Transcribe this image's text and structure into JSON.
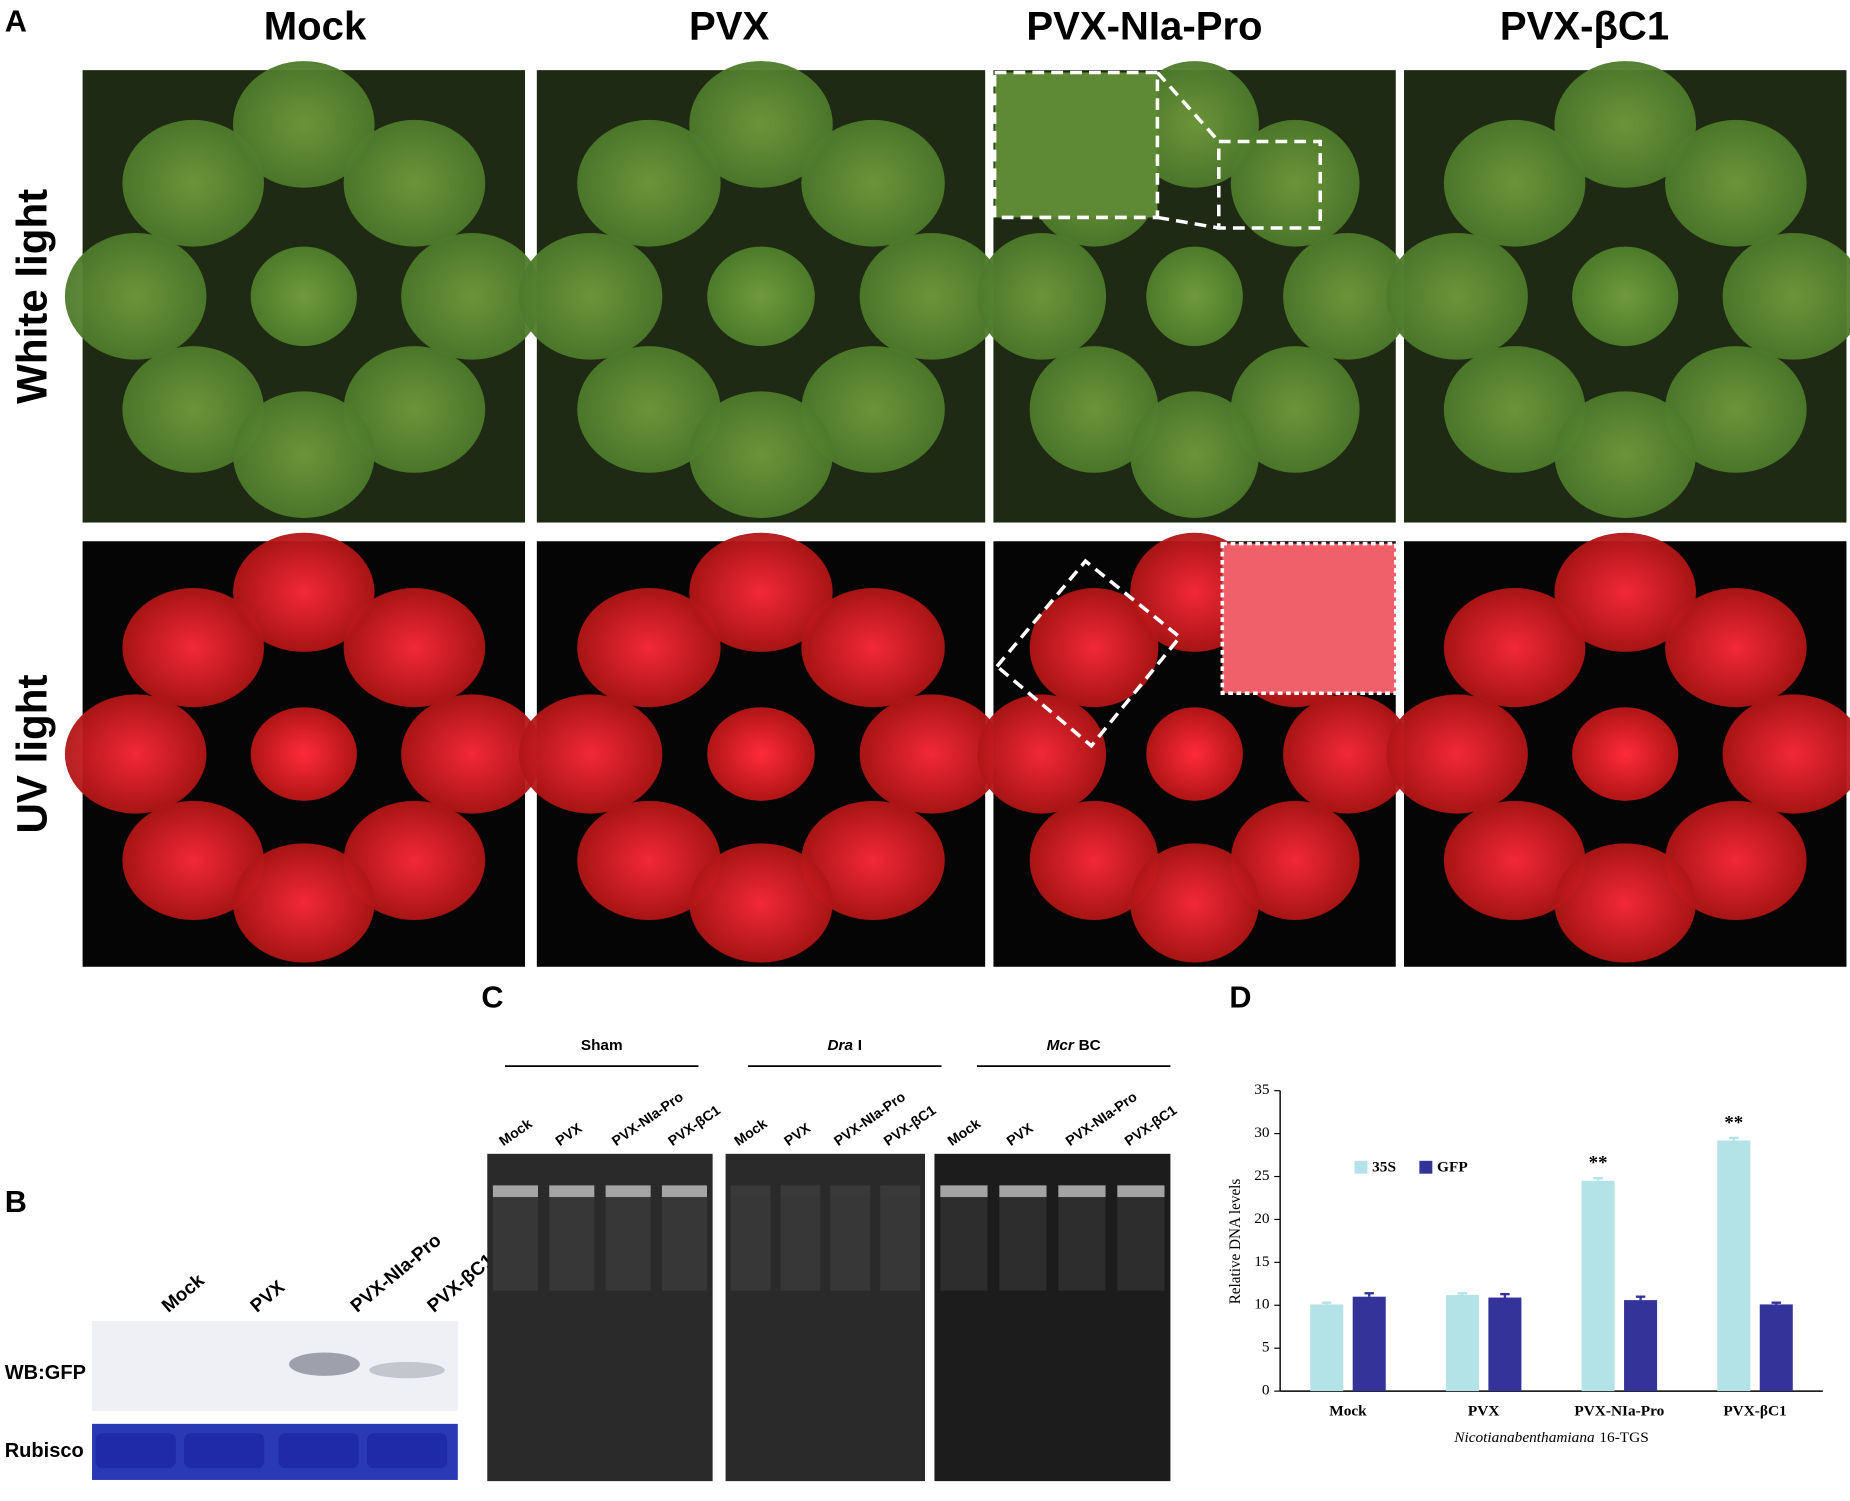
{
  "panel_a": {
    "label": "A",
    "columns": [
      "Mock",
      "PVX",
      "PVX-NIa-Pro",
      "PVX-βC1"
    ],
    "rows": [
      "White light",
      "UV light"
    ]
  },
  "panel_b": {
    "label": "B",
    "lanes": [
      "Mock",
      "PVX",
      "PVX-NIa-Pro",
      "PVX-βC1"
    ],
    "blots": [
      "WB:GFP",
      "Rubisco"
    ]
  },
  "panel_c": {
    "label": "C",
    "groups": [
      {
        "name": "Sham",
        "lanes": [
          "Mock",
          "PVX",
          "PVX-NIa-Pro",
          "PVX-βC1"
        ]
      },
      {
        "name_italic": "Dra",
        "name": "I",
        "lanes": [
          "Mock",
          "PVX",
          "PVX-NIa-Pro",
          "PVX-βC1"
        ]
      },
      {
        "name_italic": "Mcr",
        "name": "BC",
        "lanes": [
          "Mock",
          "PVX",
          "PVX-NIa-Pro",
          "PVX-βC1"
        ]
      }
    ]
  },
  "chart_data": {
    "type": "bar",
    "panel_label": "D",
    "y_label": "Relative DNA levels",
    "x_label": {
      "italic": "Nicotianabenthamiana",
      "text": "16-TGS"
    },
    "categories": [
      "Mock",
      "PVX",
      "PVX-NIa-Pro",
      "PVX-βC1"
    ],
    "series": [
      {
        "name": "35S",
        "color": "#b3e3e6",
        "values": [
          10.1,
          11.2,
          24.5,
          29.2
        ],
        "errors": [
          0.2,
          0.2,
          0.3,
          0.3
        ],
        "significance": [
          null,
          null,
          "**",
          "**"
        ]
      },
      {
        "name": "GFP",
        "color": "#333399",
        "values": [
          11.0,
          10.9,
          10.6,
          10.1
        ],
        "errors": [
          0.4,
          0.4,
          0.4,
          0.2
        ]
      }
    ],
    "ylim": [
      0,
      35
    ],
    "yticks": [
      0,
      5,
      10,
      15,
      20,
      25,
      30,
      35
    ]
  }
}
